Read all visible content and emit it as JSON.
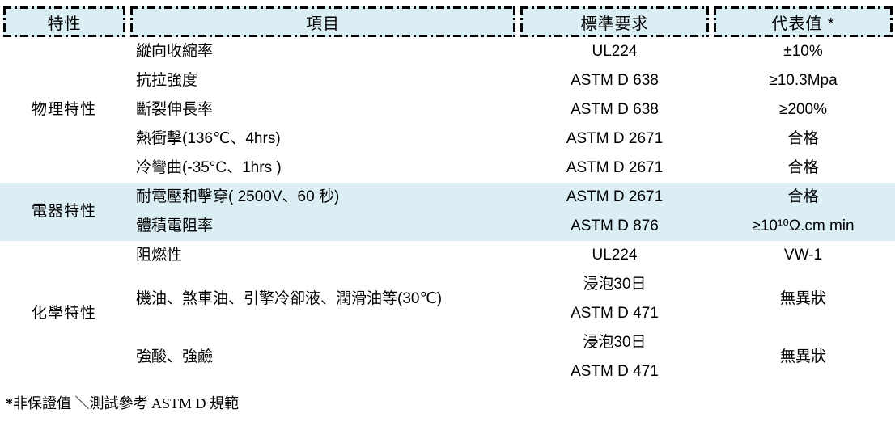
{
  "colors": {
    "header_bg": "#daeef3",
    "highlight_bg": "#daeef3",
    "border": "#000000",
    "text": "#000000"
  },
  "table": {
    "headers": [
      {
        "label": "特性"
      },
      {
        "label": "項目"
      },
      {
        "label": "標準要求"
      },
      {
        "label": "代表值 *"
      }
    ],
    "groups": [
      {
        "category": "物理特性",
        "highlighted": false,
        "rows": [
          {
            "item": "縱向收縮率",
            "standard": [
              "UL224"
            ],
            "value": "±10%"
          },
          {
            "item": "抗拉強度",
            "standard": [
              "ASTM D 638"
            ],
            "value": "≥10.3Mpa"
          },
          {
            "item": "斷裂伸長率",
            "standard": [
              "ASTM D 638"
            ],
            "value": "≥200%"
          },
          {
            "item": "熱衝擊(136℃、4hrs)",
            "standard": [
              "ASTM D 2671"
            ],
            "value": "合格"
          },
          {
            "item": "冷彎曲(-35°C、1hrs )",
            "standard": [
              "ASTM D 2671"
            ],
            "value": "合格"
          }
        ]
      },
      {
        "category": "電器特性",
        "highlighted": true,
        "rows": [
          {
            "item": "耐電壓和擊穿( 2500V、60 秒)",
            "standard": [
              "ASTM D 2671"
            ],
            "value": "合格"
          },
          {
            "item": "體積電阻率",
            "standard": [
              "ASTM D 876"
            ],
            "value": "≥10¹⁰Ω.cm min"
          }
        ]
      },
      {
        "category": "化學特性",
        "highlighted": false,
        "rows": [
          {
            "item": "阻燃性",
            "standard": [
              "UL224"
            ],
            "value": "VW-1"
          },
          {
            "item": "機油、煞車油、引擎冷卻液、潤滑油等(30℃)",
            "standard": [
              "浸泡30日",
              "ASTM D 471"
            ],
            "value": "無異狀"
          },
          {
            "item": "強酸、強鹼",
            "standard": [
              "浸泡30日",
              "ASTM D 471"
            ],
            "value": "無異狀"
          }
        ]
      }
    ],
    "footnote_marker": "*",
    "footnote_text": "非保證值 ＼測試參考 ASTM D 規範"
  }
}
